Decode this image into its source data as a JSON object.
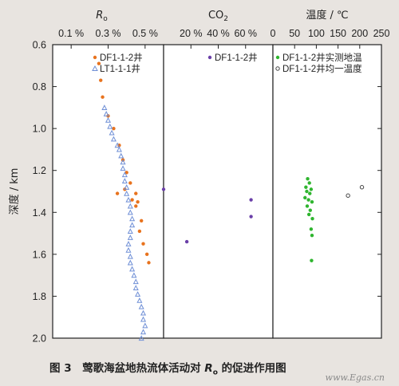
{
  "chart_data": {
    "type": "scatter",
    "ylabel": "深度 / km",
    "ylim": [
      0.6,
      2.0
    ],
    "yticks": [
      "0.6",
      "0.8",
      "1.0",
      "1.2",
      "1.4",
      "1.6",
      "1.8",
      "2.0"
    ],
    "panels": [
      {
        "title": "R",
        "title_sub": "o",
        "xlim": [
          0.0,
          0.6
        ],
        "xtick_values": [
          0.1,
          0.3,
          0.5
        ],
        "xtick_labels": [
          "0.1 %",
          "0.3 %",
          "0.5 %"
        ],
        "series": [
          {
            "name": "DF1-1-2井",
            "marker": "dot",
            "color": "#e8731e",
            "points": [
              {
                "x": 0.25,
                "y": 0.69
              },
              {
                "x": 0.26,
                "y": 0.77
              },
              {
                "x": 0.27,
                "y": 0.85
              },
              {
                "x": 0.3,
                "y": 0.94
              },
              {
                "x": 0.33,
                "y": 1.0
              },
              {
                "x": 0.36,
                "y": 1.08
              },
              {
                "x": 0.38,
                "y": 1.15
              },
              {
                "x": 0.4,
                "y": 1.21
              },
              {
                "x": 0.42,
                "y": 1.26
              },
              {
                "x": 0.39,
                "y": 1.29
              },
              {
                "x": 0.35,
                "y": 1.31
              },
              {
                "x": 0.45,
                "y": 1.31
              },
              {
                "x": 0.43,
                "y": 1.34
              },
              {
                "x": 0.46,
                "y": 1.35
              },
              {
                "x": 0.45,
                "y": 1.37
              },
              {
                "x": 0.48,
                "y": 1.44
              },
              {
                "x": 0.47,
                "y": 1.49
              },
              {
                "x": 0.49,
                "y": 1.55
              },
              {
                "x": 0.51,
                "y": 1.6
              },
              {
                "x": 0.52,
                "y": 1.64
              }
            ]
          },
          {
            "name": "LT1-1-1井",
            "marker": "triangle",
            "color": "#6f8fd6",
            "points": [
              {
                "x": 0.28,
                "y": 0.9
              },
              {
                "x": 0.29,
                "y": 0.93
              },
              {
                "x": 0.3,
                "y": 0.96
              },
              {
                "x": 0.31,
                "y": 0.99
              },
              {
                "x": 0.32,
                "y": 1.02
              },
              {
                "x": 0.33,
                "y": 1.05
              },
              {
                "x": 0.35,
                "y": 1.08
              },
              {
                "x": 0.36,
                "y": 1.1
              },
              {
                "x": 0.37,
                "y": 1.13
              },
              {
                "x": 0.38,
                "y": 1.16
              },
              {
                "x": 0.38,
                "y": 1.19
              },
              {
                "x": 0.39,
                "y": 1.22
              },
              {
                "x": 0.39,
                "y": 1.25
              },
              {
                "x": 0.4,
                "y": 1.28
              },
              {
                "x": 0.4,
                "y": 1.31
              },
              {
                "x": 0.41,
                "y": 1.34
              },
              {
                "x": 0.42,
                "y": 1.37
              },
              {
                "x": 0.42,
                "y": 1.4
              },
              {
                "x": 0.43,
                "y": 1.43
              },
              {
                "x": 0.43,
                "y": 1.46
              },
              {
                "x": 0.42,
                "y": 1.49
              },
              {
                "x": 0.42,
                "y": 1.52
              },
              {
                "x": 0.41,
                "y": 1.55
              },
              {
                "x": 0.41,
                "y": 1.58
              },
              {
                "x": 0.42,
                "y": 1.61
              },
              {
                "x": 0.42,
                "y": 1.64
              },
              {
                "x": 0.43,
                "y": 1.67
              },
              {
                "x": 0.44,
                "y": 1.7
              },
              {
                "x": 0.45,
                "y": 1.73
              },
              {
                "x": 0.45,
                "y": 1.76
              },
              {
                "x": 0.46,
                "y": 1.79
              },
              {
                "x": 0.47,
                "y": 1.82
              },
              {
                "x": 0.48,
                "y": 1.85
              },
              {
                "x": 0.49,
                "y": 1.88
              },
              {
                "x": 0.49,
                "y": 1.91
              },
              {
                "x": 0.5,
                "y": 1.94
              },
              {
                "x": 0.49,
                "y": 1.97
              },
              {
                "x": 0.48,
                "y": 2.0
              }
            ]
          }
        ],
        "legend_position": "top-right"
      },
      {
        "title": "CO",
        "title_sub": "2",
        "xlim": [
          0,
          80
        ],
        "xtick_values": [
          20,
          40,
          60
        ],
        "xtick_labels": [
          "20 %",
          "40 %",
          "60 %"
        ],
        "series": [
          {
            "name": "DF1-1-2井",
            "marker": "dot",
            "color": "#6a3fa8",
            "points": [
              {
                "x": 0,
                "y": 1.29
              },
              {
                "x": 64,
                "y": 1.34
              },
              {
                "x": 64,
                "y": 1.42
              },
              {
                "x": 17,
                "y": 1.54
              }
            ]
          }
        ],
        "legend_position": "top-right"
      },
      {
        "title": "温度 / ℃",
        "title_sub": "",
        "xlim": [
          0,
          250
        ],
        "xtick_values": [
          0,
          50,
          100,
          150,
          200,
          250
        ],
        "xtick_labels": [
          "0",
          "50",
          "100",
          "150",
          "200",
          "250"
        ],
        "series": [
          {
            "name": "DF1-1-2井实测地温",
            "marker": "dot",
            "color": "#2fb52f",
            "points": [
              {
                "x": 80,
                "y": 1.24
              },
              {
                "x": 84,
                "y": 1.26
              },
              {
                "x": 76,
                "y": 1.28
              },
              {
                "x": 88,
                "y": 1.29
              },
              {
                "x": 78,
                "y": 1.3
              },
              {
                "x": 85,
                "y": 1.31
              },
              {
                "x": 74,
                "y": 1.33
              },
              {
                "x": 82,
                "y": 1.34
              },
              {
                "x": 90,
                "y": 1.35
              },
              {
                "x": 79,
                "y": 1.37
              },
              {
                "x": 86,
                "y": 1.39
              },
              {
                "x": 83,
                "y": 1.41
              },
              {
                "x": 91,
                "y": 1.43
              },
              {
                "x": 88,
                "y": 1.48
              },
              {
                "x": 90,
                "y": 1.51
              },
              {
                "x": 89,
                "y": 1.63
              }
            ]
          },
          {
            "name": "DF1-1-2井均一温度",
            "marker": "circle",
            "color": "#444444",
            "points": [
              {
                "x": 173,
                "y": 1.32
              },
              {
                "x": 205,
                "y": 1.28
              }
            ]
          }
        ],
        "legend_position": "top-right"
      }
    ]
  },
  "caption": {
    "prefix": "图 3　莺歌海盆地热流体活动对 ",
    "symbol": "R",
    "symbol_sub": "o",
    "suffix": " 的促进作用图"
  },
  "watermark": "www.Egas.cn"
}
